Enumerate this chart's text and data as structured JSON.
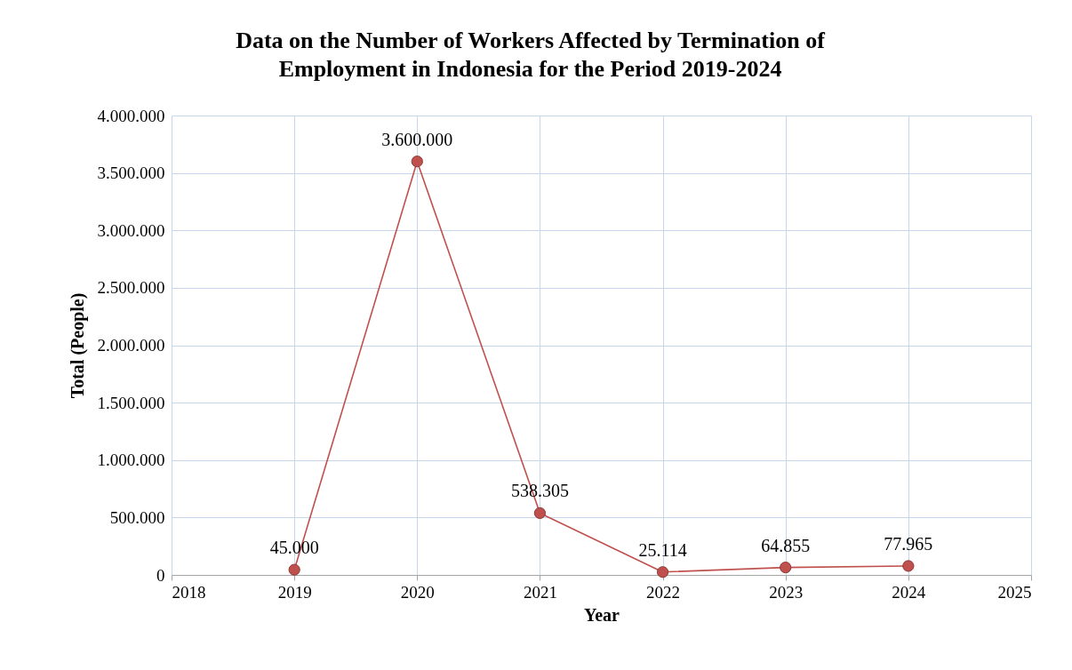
{
  "chart_data": {
    "type": "line",
    "title": "Data on the Number of Workers Affected by Termination of Employment in Indonesia for the Period 2019-2024",
    "xlabel": "Year",
    "ylabel": "Total (People)",
    "x": [
      2019,
      2020,
      2021,
      2022,
      2023,
      2024
    ],
    "series": [
      {
        "color": "#c0504d",
        "values": [
          45000,
          3600000,
          538305,
          25114,
          64855,
          77965
        ],
        "value_labels": [
          "45.000",
          "3.600.000",
          "538.305",
          "25.114",
          "64.855",
          "77.965"
        ]
      }
    ],
    "xlim": [
      2018,
      2025
    ],
    "xticks": [
      2018,
      2019,
      2020,
      2021,
      2022,
      2023,
      2024,
      2025
    ],
    "ylim": [
      0,
      4000000
    ],
    "yticks": [
      0,
      {
        "value": 500000,
        "label": "500.000"
      },
      {
        "value": 1000000,
        "label": "1.000.000"
      },
      {
        "value": 1500000,
        "label": "1.500.000"
      },
      {
        "value": 2000000,
        "label": "2.000.000"
      },
      {
        "value": 2500000,
        "label": "2.500.000"
      },
      {
        "value": 3000000,
        "label": "3.000.000"
      },
      {
        "value": 3500000,
        "label": "3.500.000"
      },
      {
        "value": 4000000,
        "label": "4.000.000"
      }
    ],
    "grid": true,
    "marker": "circle",
    "line_style": "solid"
  }
}
